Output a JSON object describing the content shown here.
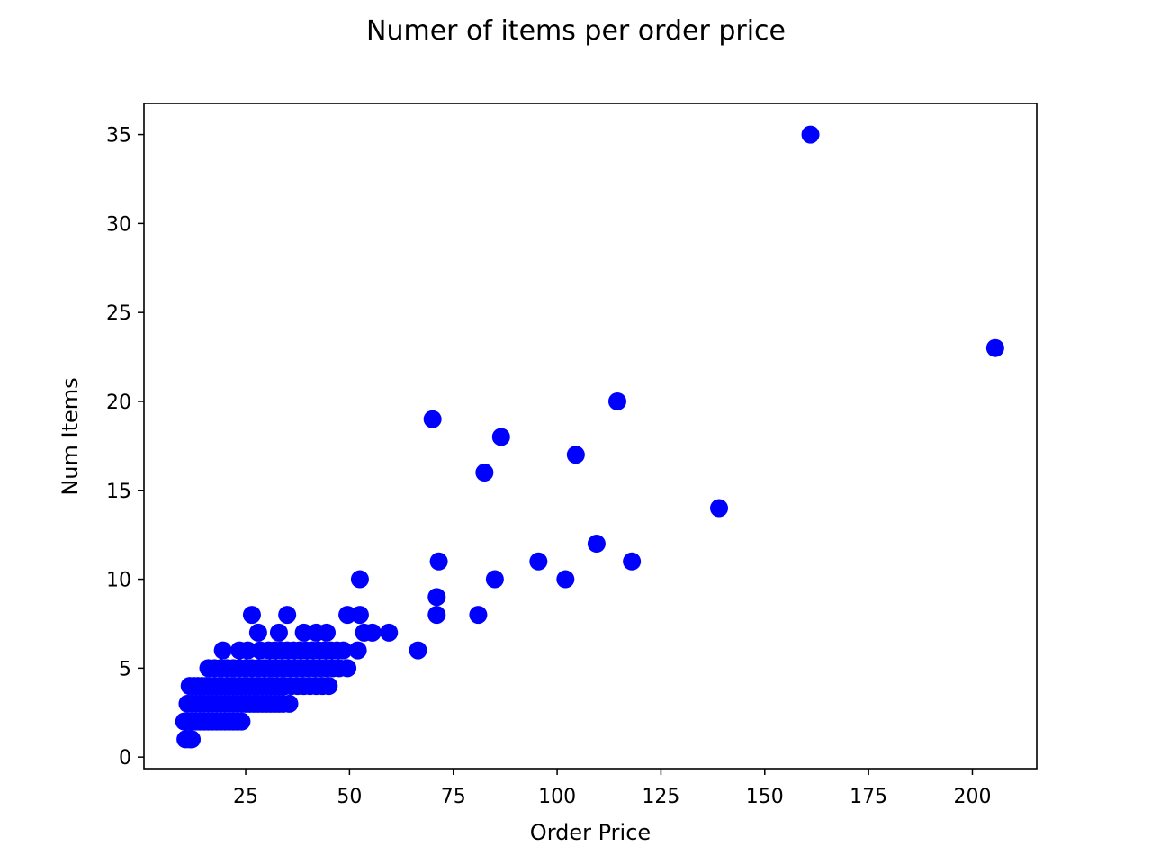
{
  "chart_data": {
    "type": "scatter",
    "title": "Numer of items per order price",
    "xlabel": "Order Price",
    "ylabel": "Num Items",
    "xlim": [
      0.5,
      215.5
    ],
    "ylim": [
      -0.65,
      36.75
    ],
    "xticks": [
      25,
      50,
      75,
      100,
      125,
      150,
      175,
      200
    ],
    "yticks": [
      0,
      5,
      10,
      15,
      20,
      25,
      30,
      35
    ],
    "grid": false,
    "marker_color": "#0000ff",
    "series": [
      {
        "points": [
          [
            10.5,
            1
          ],
          [
            11.5,
            1
          ],
          [
            12,
            1
          ],
          [
            10.2,
            2
          ],
          [
            11,
            2
          ],
          [
            12,
            2
          ],
          [
            13,
            2
          ],
          [
            14,
            2
          ],
          [
            15,
            2
          ],
          [
            16,
            2
          ],
          [
            17,
            2
          ],
          [
            18,
            2
          ],
          [
            19,
            2
          ],
          [
            20,
            2
          ],
          [
            21,
            2
          ],
          [
            22,
            2
          ],
          [
            23,
            2
          ],
          [
            24,
            2
          ],
          [
            11,
            3
          ],
          [
            12,
            3
          ],
          [
            13,
            3
          ],
          [
            14,
            3
          ],
          [
            15,
            3
          ],
          [
            16,
            3
          ],
          [
            17,
            3
          ],
          [
            18,
            3
          ],
          [
            19,
            3
          ],
          [
            20,
            3
          ],
          [
            21,
            3
          ],
          [
            22,
            3
          ],
          [
            23,
            3
          ],
          [
            24,
            3
          ],
          [
            25,
            3
          ],
          [
            26,
            3
          ],
          [
            27,
            3
          ],
          [
            28,
            3
          ],
          [
            29,
            3
          ],
          [
            30,
            3
          ],
          [
            31,
            3
          ],
          [
            32,
            3
          ],
          [
            33,
            3
          ],
          [
            34,
            3
          ],
          [
            35.5,
            3
          ],
          [
            11.5,
            4
          ],
          [
            12.5,
            4
          ],
          [
            13.5,
            4
          ],
          [
            14.5,
            4
          ],
          [
            15.5,
            4
          ],
          [
            16.5,
            4
          ],
          [
            17.5,
            4
          ],
          [
            18.5,
            4
          ],
          [
            19.5,
            4
          ],
          [
            20.5,
            4
          ],
          [
            21.5,
            4
          ],
          [
            22.5,
            4
          ],
          [
            23.5,
            4
          ],
          [
            24.5,
            4
          ],
          [
            25.5,
            4
          ],
          [
            26.5,
            4
          ],
          [
            27.5,
            4
          ],
          [
            28.5,
            4
          ],
          [
            29.5,
            4
          ],
          [
            30.5,
            4
          ],
          [
            31.5,
            4
          ],
          [
            32.5,
            4
          ],
          [
            33.5,
            4
          ],
          [
            34.5,
            4
          ],
          [
            36,
            4
          ],
          [
            37.5,
            4
          ],
          [
            39,
            4
          ],
          [
            40.5,
            4
          ],
          [
            42,
            4
          ],
          [
            43.5,
            4
          ],
          [
            45,
            4
          ],
          [
            16,
            5
          ],
          [
            17.5,
            5
          ],
          [
            19,
            5
          ],
          [
            20.5,
            5
          ],
          [
            22,
            5
          ],
          [
            23.5,
            5
          ],
          [
            25,
            5
          ],
          [
            26.5,
            5
          ],
          [
            28,
            5
          ],
          [
            29.5,
            5
          ],
          [
            31,
            5
          ],
          [
            32.5,
            5
          ],
          [
            34,
            5
          ],
          [
            35.5,
            5
          ],
          [
            37,
            5
          ],
          [
            38.5,
            5
          ],
          [
            40,
            5
          ],
          [
            41.5,
            5
          ],
          [
            43,
            5
          ],
          [
            44.5,
            5
          ],
          [
            46,
            5
          ],
          [
            47.5,
            5
          ],
          [
            49.5,
            5
          ],
          [
            19.5,
            6
          ],
          [
            23.5,
            6
          ],
          [
            25.5,
            6
          ],
          [
            28.5,
            6
          ],
          [
            30.5,
            6
          ],
          [
            32,
            6
          ],
          [
            33.5,
            6
          ],
          [
            35,
            6
          ],
          [
            36.5,
            6
          ],
          [
            38,
            6
          ],
          [
            39.5,
            6
          ],
          [
            41,
            6
          ],
          [
            42.5,
            6
          ],
          [
            44,
            6
          ],
          [
            45.5,
            6
          ],
          [
            47,
            6
          ],
          [
            48.5,
            6
          ],
          [
            52,
            6
          ],
          [
            66.5,
            6
          ],
          [
            28,
            7
          ],
          [
            33,
            7
          ],
          [
            39,
            7
          ],
          [
            42,
            7
          ],
          [
            44.5,
            7
          ],
          [
            53.5,
            7
          ],
          [
            55.5,
            7
          ],
          [
            59.5,
            7
          ],
          [
            26.5,
            8
          ],
          [
            35,
            8
          ],
          [
            49.5,
            8
          ],
          [
            52.5,
            8
          ],
          [
            71,
            8
          ],
          [
            81,
            8
          ],
          [
            71,
            9
          ],
          [
            52.5,
            10
          ],
          [
            85,
            10
          ],
          [
            102,
            10
          ],
          [
            71.5,
            11
          ],
          [
            95.5,
            11
          ],
          [
            118,
            11
          ],
          [
            109.5,
            12
          ],
          [
            139,
            14
          ],
          [
            82.5,
            16
          ],
          [
            104.5,
            17
          ],
          [
            86.5,
            18
          ],
          [
            70,
            19
          ],
          [
            114.5,
            20
          ],
          [
            205.5,
            23
          ],
          [
            161,
            35
          ]
        ]
      }
    ]
  }
}
